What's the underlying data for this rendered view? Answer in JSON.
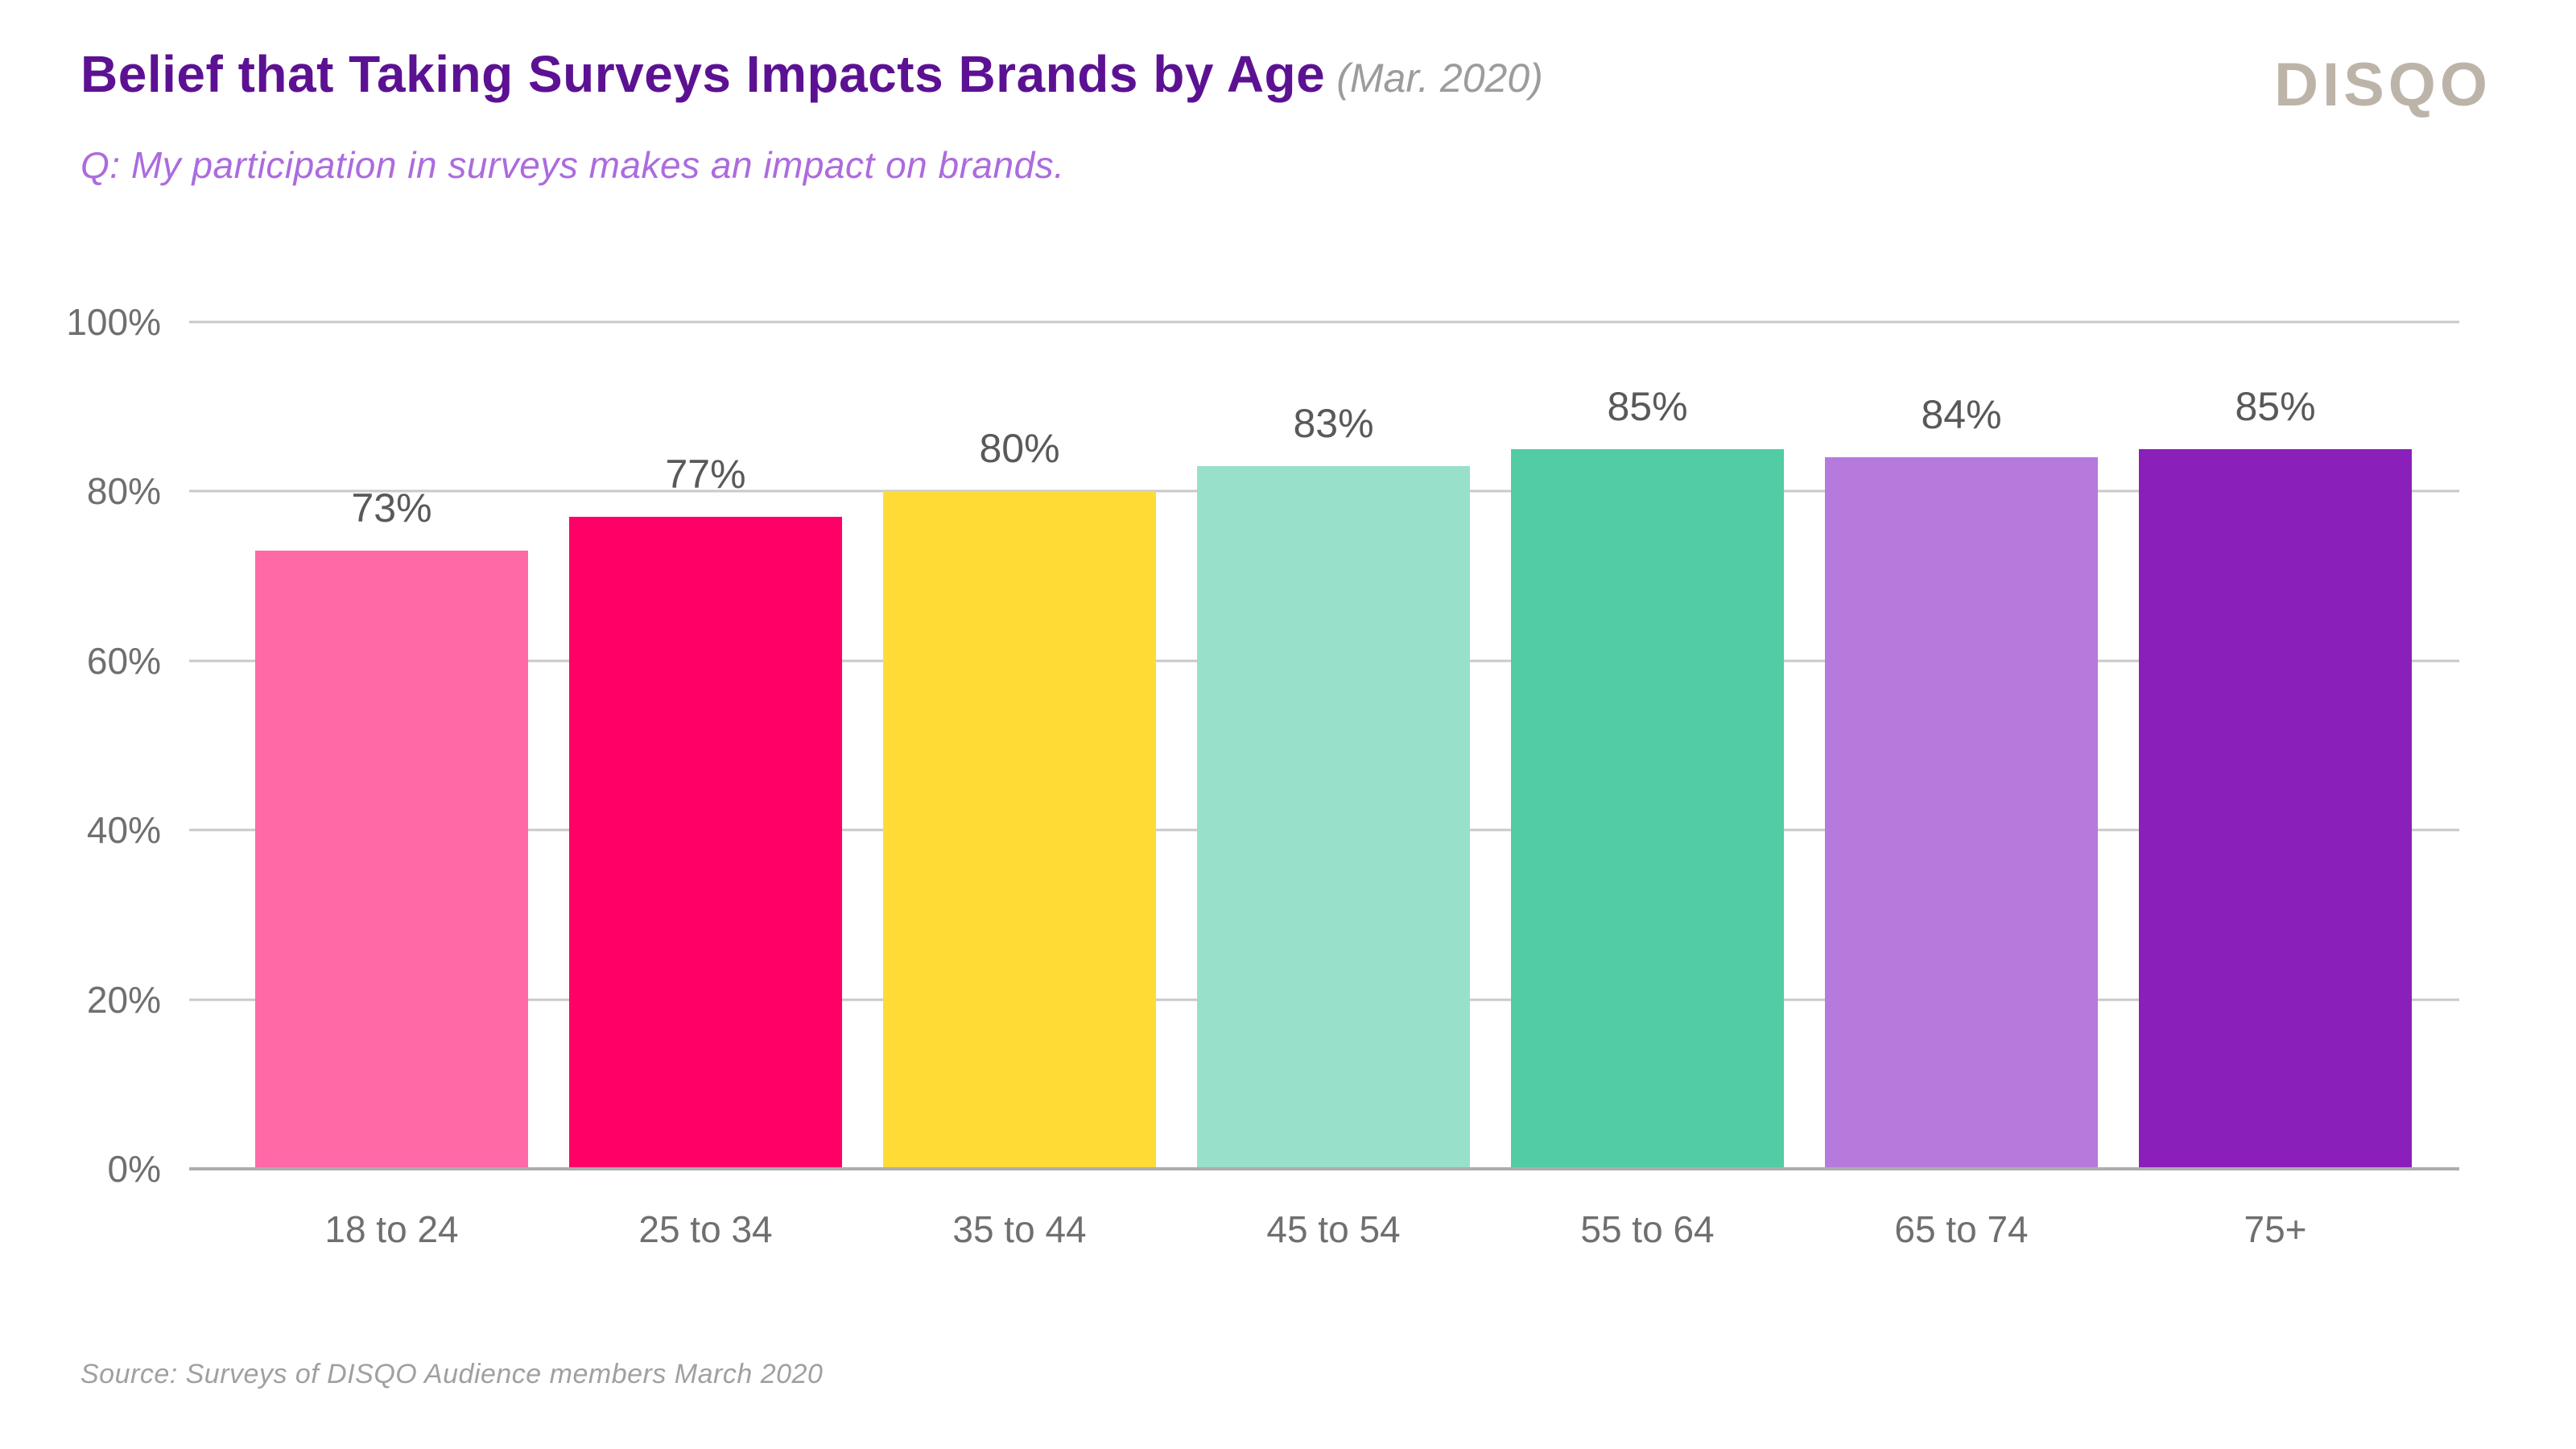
{
  "header": {
    "title": "Belief that Taking Surveys Impacts Brands by Age",
    "title_suffix": "(Mar. 2020)",
    "subtitle": "Q: My participation in surveys makes an impact on brands.",
    "logo_text": "DISQO"
  },
  "footer": {
    "source": "Source: Surveys of DISQO Audience members March 2020"
  },
  "colors": {
    "title": "#5C1193",
    "title_suffix": "#9C9C9C",
    "subtitle": "#AC6BDE",
    "logo": "#BDB4A9",
    "axis_label": "#6F6F6F",
    "data_label": "#58595B",
    "gridline": "#C9C9C9",
    "baseline": "#ADADAD",
    "source": "#A0A0A0"
  },
  "chart_data": {
    "type": "bar",
    "title": "Belief that Taking Surveys Impacts Brands by Age (Mar. 2020)",
    "subtitle": "Q: My participation in surveys makes an impact on brands.",
    "categories": [
      "18 to 24",
      "25 to 34",
      "35 to 44",
      "45 to 54",
      "55 to 64",
      "65 to 74",
      "75+"
    ],
    "values": [
      73,
      77,
      80,
      83,
      85,
      84,
      85
    ],
    "data_labels": [
      "73%",
      "77%",
      "80%",
      "83%",
      "85%",
      "84%",
      "85%"
    ],
    "bar_colors": [
      "#FF69A5",
      "#FF0066",
      "#FFDB36",
      "#98E0CA",
      "#52CCA5",
      "#B679DC",
      "#8A1FB9"
    ],
    "xlabel": "",
    "ylabel": "",
    "ylim": [
      0,
      100
    ],
    "yticks": [
      0,
      20,
      40,
      60,
      80,
      100
    ],
    "ytick_labels": [
      "0%",
      "20%",
      "40%",
      "60%",
      "80%",
      "100%"
    ],
    "grid": "horizontal",
    "legend": "none"
  }
}
